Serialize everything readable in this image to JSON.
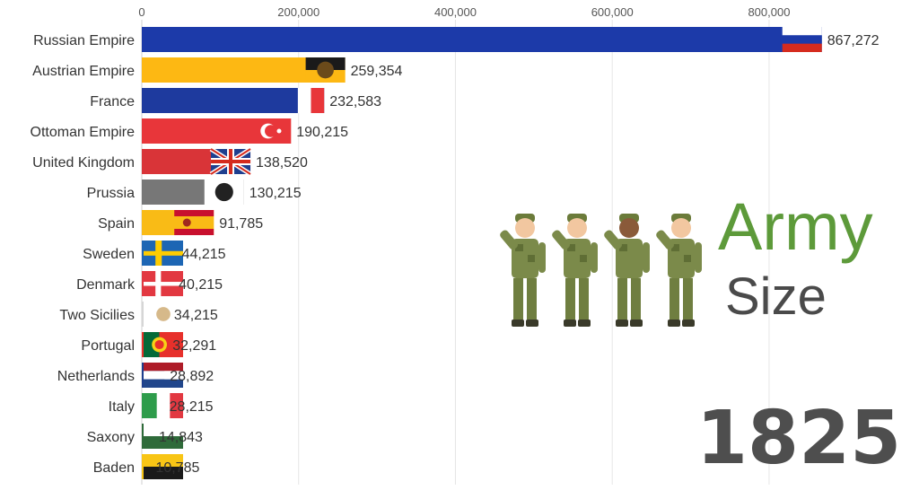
{
  "chart_data": {
    "type": "bar",
    "orientation": "horizontal",
    "title": "Army Size",
    "title_parts": [
      "Army",
      "Size"
    ],
    "year": "1825",
    "xlim": [
      0,
      950000
    ],
    "xticks": [
      0,
      200000,
      400000,
      600000,
      800000
    ],
    "xtick_labels": [
      "0",
      "200,000",
      "400,000",
      "600,000",
      "800,000"
    ],
    "grid": true,
    "categories": [
      "Russian Empire",
      "Austrian Empire",
      "France",
      "Ottoman Empire",
      "United Kingdom",
      "Prussia",
      "Spain",
      "Sweden",
      "Denmark",
      "Two Sicilies",
      "Portugal",
      "Netherlands",
      "Italy",
      "Saxony",
      "Baden"
    ],
    "values": [
      867272,
      259354,
      232583,
      190215,
      138520,
      130215,
      91785,
      44215,
      40215,
      34215,
      32291,
      28892,
      28215,
      14843,
      10785
    ],
    "value_labels": [
      "867,272",
      "259,354",
      "232,583",
      "190,215",
      "138,520",
      "130,215",
      "91,785",
      "44,215",
      "40,215",
      "34,215",
      "32,291",
      "28,892",
      "28,215",
      "14,843",
      "10,785"
    ],
    "colors": [
      "#1c3aa9",
      "#fdb813",
      "#1e3a9e",
      "#e8363a",
      "#d93438",
      "#777777",
      "#f9bb16",
      "#1d66b4",
      "#e23841",
      "#d6d6d6",
      "#e7302b",
      "#1f3f8f",
      "#2e9c4b",
      "#2f6b3a",
      "#f8c515"
    ],
    "flags": [
      "russia-flag",
      "austria-flag",
      "france-flag",
      "ottoman-flag",
      "uk-flag",
      "prussia-flag",
      "spain-flag",
      "sweden-flag",
      "denmark-flag",
      "two-sicilies-flag",
      "portugal-flag",
      "netherlands-flag",
      "italy-flag",
      "saxony-flag",
      "baden-flag"
    ]
  }
}
